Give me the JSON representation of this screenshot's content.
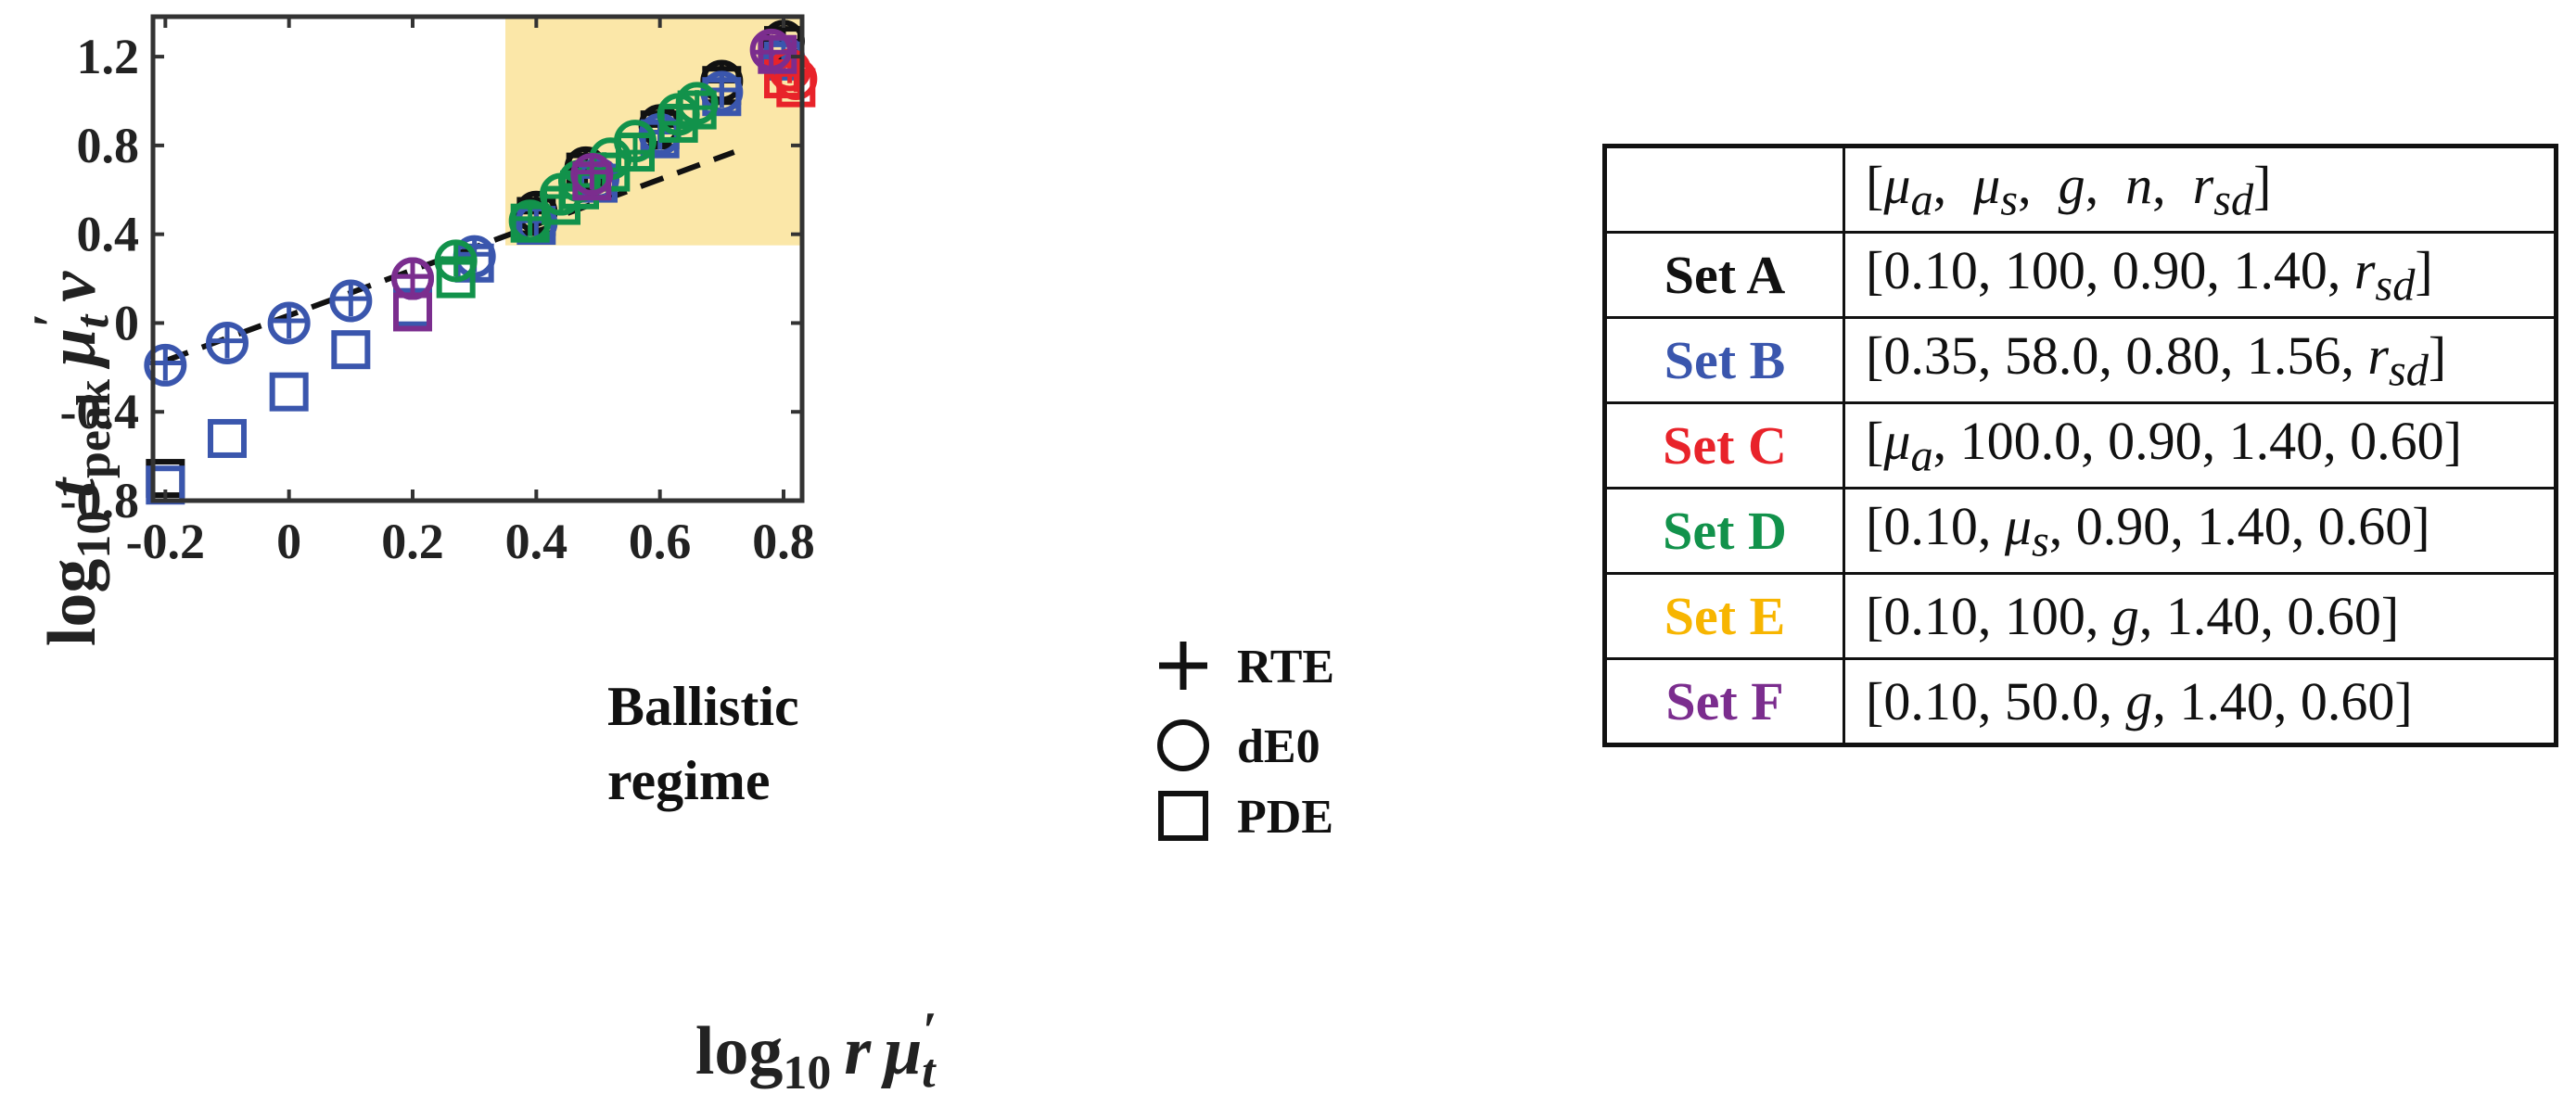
{
  "chart_data": {
    "type": "scatter",
    "xlabel": {
      "main": "log",
      "sub": "10",
      "var": "r",
      "mu": "μ",
      "prime": "′",
      "musub": "t"
    },
    "ylabel": {
      "main": "log",
      "sub": "10",
      "var": "t",
      "varsub": "peak",
      "mu": "μ",
      "prime": "′",
      "musub": "t",
      "tail": "v"
    },
    "xlim": [
      -0.22,
      0.83
    ],
    "ylim": [
      -0.8,
      1.38
    ],
    "xticks": [
      "-0.2",
      "0",
      "0.2",
      "0.4",
      "0.6",
      "0.8"
    ],
    "xtick_values": [
      -0.2,
      0,
      0.2,
      0.4,
      0.6,
      0.8
    ],
    "yticks": [
      "-0.8",
      "-0.4",
      "0",
      "0.4",
      "0.8",
      "1.2"
    ],
    "ytick_values": [
      -0.8,
      -0.4,
      0,
      0.4,
      0.8,
      1.2
    ],
    "grid": false,
    "highlight_region": {
      "x": [
        0.35,
        0.83
      ],
      "y": [
        0.35,
        1.38
      ],
      "color": "#fbe7a8"
    },
    "reference_line": {
      "points": [
        [
          -0.2,
          -0.17
        ],
        [
          0.72,
          0.77
        ]
      ],
      "style": "dashed",
      "color": "#111111"
    },
    "annotation": [
      "Ballistic",
      "regime"
    ],
    "legend": {
      "placement": "bottom-right",
      "entries": [
        {
          "marker": "plus",
          "label": "RTE"
        },
        {
          "marker": "circle",
          "label": "dE0"
        },
        {
          "marker": "square",
          "label": "PDE"
        }
      ]
    },
    "series": [
      {
        "set": "A",
        "color": "#111111",
        "points": {
          "rte": [
            [
              0.4,
              0.5
            ],
            [
              0.48,
              0.7
            ],
            [
              0.6,
              0.89
            ],
            [
              0.7,
              1.09
            ],
            [
              0.8,
              1.27
            ]
          ],
          "de0": [
            [
              0.4,
              0.5
            ],
            [
              0.48,
              0.7
            ],
            [
              0.6,
              0.89
            ],
            [
              0.7,
              1.09
            ],
            [
              0.8,
              1.27
            ]
          ],
          "pde": [
            [
              -0.2,
              -0.7
            ],
            [
              0.4,
              0.48
            ],
            [
              0.48,
              0.68
            ],
            [
              0.6,
              0.87
            ],
            [
              0.7,
              1.07
            ],
            [
              0.8,
              1.25
            ]
          ]
        }
      },
      {
        "set": "B",
        "color": "#3a56ad",
        "points": {
          "rte": [
            [
              -0.2,
              -0.18
            ],
            [
              -0.1,
              -0.08
            ],
            [
              0,
              0.01
            ],
            [
              0.1,
              0.11
            ],
            [
              0.2,
              0.21
            ],
            [
              0.3,
              0.31
            ],
            [
              0.4,
              0.46
            ],
            [
              0.5,
              0.66
            ],
            [
              0.6,
              0.86
            ],
            [
              0.7,
              1.05
            ],
            [
              0.8,
              1.21
            ]
          ],
          "de0": [
            [
              -0.2,
              -0.19
            ],
            [
              -0.1,
              -0.09
            ],
            [
              0,
              0.0
            ],
            [
              0.1,
              0.1
            ],
            [
              0.2,
              0.2
            ],
            [
              0.3,
              0.3
            ],
            [
              0.4,
              0.45
            ],
            [
              0.5,
              0.65
            ],
            [
              0.6,
              0.85
            ],
            [
              0.7,
              1.04
            ],
            [
              0.8,
              1.2
            ]
          ],
          "pde": [
            [
              -0.2,
              -0.73
            ],
            [
              -0.1,
              -0.52
            ],
            [
              0,
              -0.31
            ],
            [
              0.1,
              -0.12
            ],
            [
              0.2,
              0.07
            ],
            [
              0.3,
              0.27
            ],
            [
              0.4,
              0.44
            ],
            [
              0.5,
              0.63
            ],
            [
              0.6,
              0.83
            ],
            [
              0.7,
              1.02
            ],
            [
              0.8,
              1.18
            ]
          ]
        }
      },
      {
        "set": "C",
        "color": "#e8232a",
        "points": {
          "rte": [
            [
              0.81,
              1.16
            ],
            [
              0.82,
              1.12
            ]
          ],
          "de0": [
            [
              0.81,
              1.14
            ],
            [
              0.82,
              1.1
            ]
          ],
          "pde": [
            [
              0.8,
              1.1
            ],
            [
              0.82,
              1.06
            ]
          ]
        }
      },
      {
        "set": "D",
        "color": "#12924b",
        "points": {
          "rte": [
            [
              0.27,
              0.29
            ],
            [
              0.39,
              0.47
            ],
            [
              0.44,
              0.57
            ],
            [
              0.47,
              0.62
            ],
            [
              0.51,
              0.69
            ],
            [
              0.56,
              0.77
            ],
            [
              0.63,
              0.9
            ],
            [
              0.66,
              0.97
            ]
          ],
          "de0": [
            [
              0.27,
              0.28
            ],
            [
              0.39,
              0.46
            ],
            [
              0.44,
              0.58
            ],
            [
              0.47,
              0.64
            ],
            [
              0.52,
              0.74
            ],
            [
              0.56,
              0.82
            ],
            [
              0.63,
              0.94
            ],
            [
              0.66,
              0.99
            ]
          ],
          "pde": [
            [
              0.27,
              0.2
            ],
            [
              0.39,
              0.45
            ],
            [
              0.44,
              0.53
            ],
            [
              0.47,
              0.6
            ],
            [
              0.52,
              0.68
            ],
            [
              0.56,
              0.77
            ],
            [
              0.63,
              0.9
            ],
            [
              0.66,
              0.96
            ]
          ]
        }
      },
      {
        "set": "F",
        "color": "#7b2d8e",
        "points": {
          "rte": [
            [
              0.2,
              0.21
            ],
            [
              0.49,
              0.68
            ],
            [
              0.78,
              1.22
            ]
          ],
          "de0": [
            [
              0.2,
              0.2
            ],
            [
              0.49,
              0.67
            ],
            [
              0.78,
              1.23
            ]
          ],
          "pde": [
            [
              0.2,
              0.05
            ],
            [
              0.49,
              0.64
            ],
            [
              0.79,
              1.21
            ]
          ]
        }
      }
    ]
  },
  "table": {
    "header_cols": [
      "μ",
      "a",
      "μ",
      "s",
      "g",
      "n",
      "r",
      "sd"
    ],
    "rows": [
      {
        "name": "Set A",
        "color": "#111111",
        "value": [
          "[0.10, 100, 0.90, 1.40, ",
          "r",
          "sd",
          "]"
        ]
      },
      {
        "name": "Set B",
        "color": "#3a56ad",
        "value": [
          "[0.35, 58.0, 0.80, 1.56, ",
          "r",
          "sd",
          "]"
        ]
      },
      {
        "name": "Set C",
        "color": "#e8232a",
        "value": [
          "[",
          "μ",
          "a",
          ", 100.0, 0.90, 1.40, 0.60]"
        ]
      },
      {
        "name": "Set D",
        "color": "#12924b",
        "value": [
          "[0.10, ",
          "μ",
          "s",
          ", 0.90, 1.40, 0.60]"
        ]
      },
      {
        "name": "Set E",
        "color": "#f7b500",
        "value": [
          "[0.10, 100, ",
          "g",
          "",
          ", 1.40, 0.60]"
        ]
      },
      {
        "name": "Set F",
        "color": "#7b2d8e",
        "value": [
          "[0.10, 50.0, ",
          "g",
          "",
          ", 1.40, 0.60]"
        ]
      }
    ]
  }
}
